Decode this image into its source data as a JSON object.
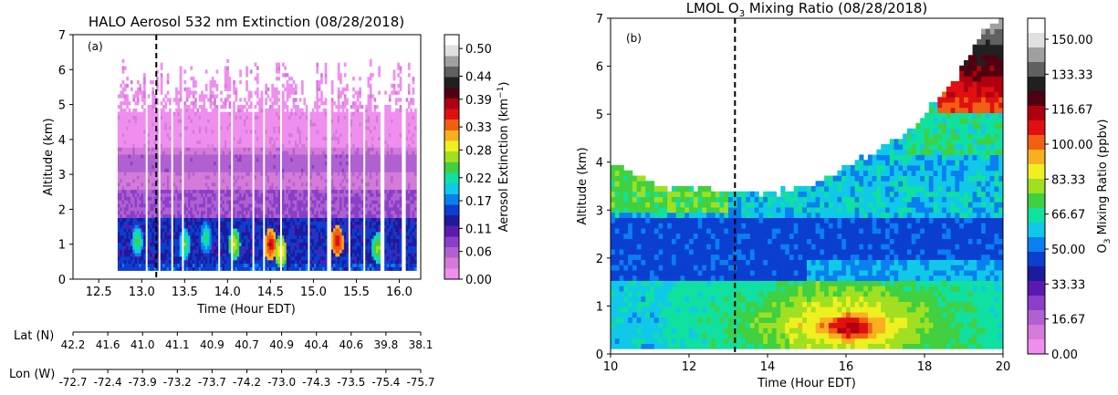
{
  "chart_data": [
    {
      "type": "heatmap",
      "panel_label": "(a)",
      "title": "HALO Aerosol 532 nm Extinction (08/28/2018)",
      "xlabel": "Time (Hour EDT)",
      "ylabel": "Altitude (km)",
      "xlim": [
        12.2,
        16.25
      ],
      "ylim": [
        0,
        7
      ],
      "xticks": [
        12.5,
        13.0,
        13.5,
        14.0,
        14.5,
        15.0,
        15.5,
        16.0
      ],
      "xtick_labels": [
        "12.5",
        "13.0",
        "13.5",
        "14.0",
        "14.5",
        "15.0",
        "15.5",
        "16.0"
      ],
      "yticks": [
        0,
        1,
        2,
        3,
        4,
        5,
        6,
        7
      ],
      "ytick_labels": [
        "0",
        "1",
        "2",
        "3",
        "4",
        "5",
        "6",
        "7"
      ],
      "vline_x": 13.17,
      "data_extent": {
        "x": [
          12.72,
          16.2
        ],
        "y": [
          0.25,
          6.3
        ]
      },
      "colorbar": {
        "label_main": "Aerosol Extinction (km",
        "label_sup": "−1",
        "label_end": ")",
        "range": [
          0,
          0.53
        ],
        "ticks": [
          0.0,
          0.06,
          0.11,
          0.17,
          0.22,
          0.28,
          0.33,
          0.39,
          0.44,
          0.5
        ],
        "tick_labels": [
          "0.00",
          "0.06",
          "0.11",
          "0.17",
          "0.22",
          "0.28",
          "0.33",
          "0.39",
          "0.44",
          "0.50"
        ],
        "colors": [
          "#f08ef0",
          "#d47ad8",
          "#b060d0",
          "#8a3fc8",
          "#5a1ab0",
          "#1d1a9c",
          "#0a3fd0",
          "#0a7ff0",
          "#10c8e8",
          "#10e0a0",
          "#40d040",
          "#a0e020",
          "#f0f020",
          "#f8b020",
          "#f06010",
          "#e01010",
          "#b00010",
          "#500010",
          "#202020",
          "#606060",
          "#a0a0a0",
          "#e0e0e0",
          "#ffffff"
        ]
      },
      "secondary_axes": [
        {
          "label": "Lat (N)",
          "values": [
            "42.2",
            "41.6",
            "41.0",
            "41.1",
            "40.9",
            "40.7",
            "40.9",
            "40.4",
            "40.6",
            "39.8",
            "38.1"
          ]
        },
        {
          "label": "Lon (W)",
          "values": [
            "-72.7",
            "-72.4",
            "-73.9",
            "-73.2",
            "-73.7",
            "-74.2",
            "-73.0",
            "-74.3",
            "-73.5",
            "-75.4",
            "-75.7"
          ]
        }
      ]
    },
    {
      "type": "heatmap",
      "panel_label": "(b)",
      "title_pre": "LMOL O",
      "title_sub": "3",
      "title_post": " Mixing Ratio (08/28/2018)",
      "xlabel": "Time (Hour EDT)",
      "ylabel": "Altitude (km)",
      "xlim": [
        10,
        20
      ],
      "ylim": [
        0,
        7
      ],
      "xticks": [
        10,
        12,
        14,
        16,
        18,
        20
      ],
      "xtick_labels": [
        "10",
        "12",
        "14",
        "16",
        "18",
        "20"
      ],
      "yticks": [
        0,
        1,
        2,
        3,
        4,
        5,
        6,
        7
      ],
      "ytick_labels": [
        "0",
        "1",
        "2",
        "3",
        "4",
        "5",
        "6",
        "7"
      ],
      "vline_x": 13.17,
      "top_boundary": {
        "x": [
          10,
          10.5,
          11,
          11.5,
          12,
          12.5,
          13,
          13.5,
          14,
          14.5,
          15,
          15.5,
          16,
          16.5,
          17,
          17.5,
          18,
          18.5,
          19,
          19.5,
          20
        ],
        "y": [
          4.0,
          3.8,
          3.6,
          3.5,
          3.45,
          3.5,
          3.4,
          3.35,
          3.35,
          3.4,
          3.5,
          3.7,
          3.95,
          4.1,
          4.4,
          4.6,
          5.0,
          5.4,
          6.0,
          6.8,
          7.0
        ]
      },
      "colorbar": {
        "label_pre": "O",
        "label_sub": "3",
        "label_post": " Mixing Ratio (ppbv)",
        "range": [
          0,
          160
        ],
        "ticks": [
          0,
          16.67,
          33.33,
          50.0,
          66.67,
          83.33,
          100.0,
          116.67,
          133.33,
          150.0
        ],
        "tick_labels": [
          "0.00",
          "16.67",
          "33.33",
          "50.00",
          "66.67",
          "83.33",
          "100.00",
          "116.67",
          "133.33",
          "150.00"
        ],
        "colors": [
          "#f08ef0",
          "#d47ad8",
          "#b060d0",
          "#8a3fc8",
          "#5a1ab0",
          "#1d1a9c",
          "#0a3fd0",
          "#0a7ff0",
          "#10c8e8",
          "#10e0a0",
          "#40d040",
          "#a0e020",
          "#f0f020",
          "#f8b020",
          "#f06010",
          "#e01010",
          "#b00010",
          "#500010",
          "#202020",
          "#606060",
          "#a0a0a0",
          "#e0e0e0",
          "#ffffff"
        ]
      }
    }
  ]
}
